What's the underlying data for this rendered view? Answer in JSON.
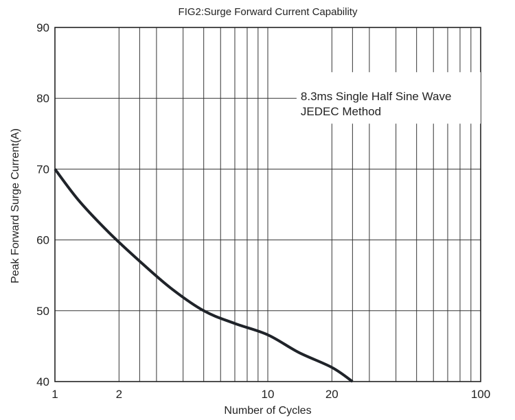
{
  "chart_data": {
    "type": "line",
    "title": "FIG2:Surge Forward Current Capability",
    "xlabel": "Number of Cycles",
    "ylabel": "Peak Forward Surge Current(A)",
    "x_scale": "log",
    "xlim": [
      1,
      100
    ],
    "ylim": [
      40,
      90
    ],
    "x_tick_labels": [
      "1",
      "2",
      "10",
      "20",
      "100"
    ],
    "x_ticks": [
      1,
      2,
      10,
      20,
      100
    ],
    "y_tick_labels": [
      "90",
      "80",
      "70",
      "60",
      "50",
      "40"
    ],
    "y_ticks": [
      90,
      80,
      70,
      60,
      50,
      40
    ],
    "x_grid": [
      1,
      2,
      2.5,
      3,
      4,
      5,
      6,
      7,
      8,
      9,
      10,
      20,
      25,
      30,
      40,
      50,
      60,
      70,
      80,
      90,
      100
    ],
    "y_grid": [
      40,
      50,
      60,
      70,
      80,
      90
    ],
    "annotation": {
      "line1": "8.3ms Single Half Sine Wave",
      "line2": "JEDEC Method",
      "x": 30,
      "y": 80
    },
    "grid": true,
    "series": [
      {
        "color": "#1f2329",
        "x": [
          1,
          1.3,
          1.8,
          2.5,
          3.5,
          5,
          7,
          10,
          14,
          20,
          25
        ],
        "y": [
          70,
          65.5,
          61,
          57,
          53.2,
          50,
          48.2,
          46.6,
          44.1,
          42,
          40
        ]
      }
    ]
  }
}
